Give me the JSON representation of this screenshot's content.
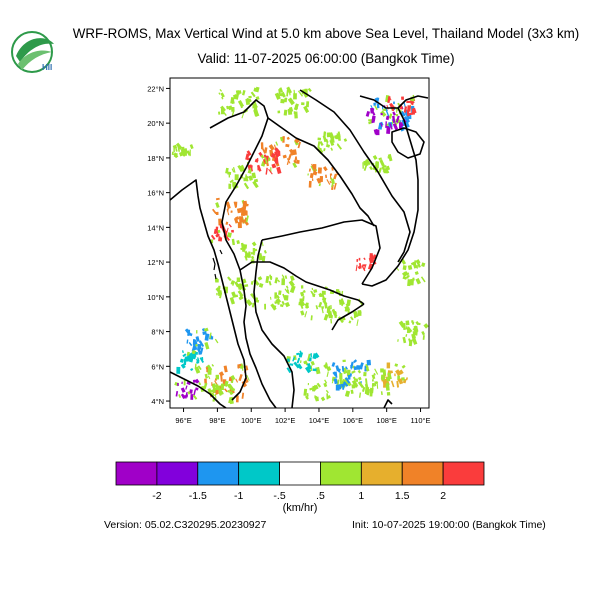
{
  "header": {
    "title": "WRF-ROMS, Max Vertical Wind at 5.0 km above Sea Level, Thailand Model (3x3 km)",
    "valid": "Valid: 11-07-2025 06:00:00 (Bangkok Time)",
    "logo_text": "HII"
  },
  "map": {
    "lat_labels": [
      "22°N",
      "20°N",
      "18°N",
      "16°N",
      "14°N",
      "12°N",
      "10°N",
      "8°N",
      "6°N",
      "4°N"
    ],
    "lon_labels": [
      "96°E",
      "98°E",
      "100°E",
      "102°E",
      "104°E",
      "106°E",
      "108°E",
      "110°E"
    ],
    "lat_range": [
      3.6,
      22.6
    ],
    "lon_range": [
      95.2,
      110.5
    ],
    "coastline_color": "#000000"
  },
  "colorbar": {
    "colors": [
      "#a000c8",
      "#8200dc",
      "#1e96f0",
      "#00c8c8",
      "#ffffff",
      "#a0e632",
      "#e6af2d",
      "#f08228",
      "#fa3c3c"
    ],
    "labels": [
      "-2",
      "-1.5",
      "-1",
      "-.5",
      ".5",
      "1",
      "1.5",
      "2"
    ],
    "units": "(km/hr)"
  },
  "footer": {
    "version": "Version: 05.02.C320295.20230927",
    "init": "Init: 10-07-2025 19:00:00 (Bangkok Time)"
  }
}
